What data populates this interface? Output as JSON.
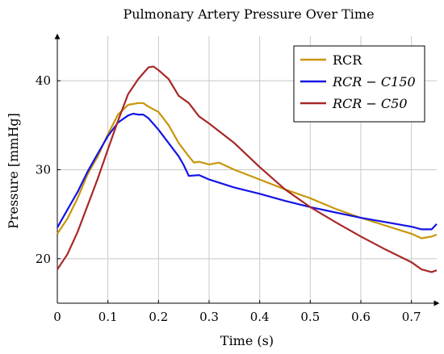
{
  "chart_data": {
    "type": "line",
    "title": "Pulmonary Artery Pressure Over Time",
    "xlabel": "Time (s)",
    "ylabel": "Pressure [mmHg]",
    "xlim": [
      0,
      0.75
    ],
    "ylim": [
      15,
      45
    ],
    "xticks": [
      0,
      0.1,
      0.2,
      0.3,
      0.4,
      0.5,
      0.6,
      0.7
    ],
    "yticks": [
      20,
      30,
      40
    ],
    "grid": true,
    "legend_position": "top-right",
    "series": [
      {
        "name": "RCR",
        "color": "#c8960a",
        "x": [
          0,
          0.02,
          0.04,
          0.06,
          0.08,
          0.1,
          0.12,
          0.14,
          0.16,
          0.17,
          0.18,
          0.2,
          0.22,
          0.24,
          0.26,
          0.27,
          0.28,
          0.3,
          0.32,
          0.35,
          0.4,
          0.45,
          0.5,
          0.55,
          0.6,
          0.65,
          0.7,
          0.72,
          0.74,
          0.75
        ],
        "y": [
          22.8,
          24.5,
          26.8,
          29.5,
          31.5,
          34,
          36.2,
          37.3,
          37.5,
          37.5,
          37.1,
          36.5,
          35,
          33,
          31.5,
          30.8,
          30.9,
          30.6,
          30.8,
          30,
          28.9,
          27.8,
          26.8,
          25.6,
          24.6,
          23.7,
          22.8,
          22.3,
          22.5,
          22.7
        ]
      },
      {
        "name": "RCR − C150",
        "color": "#1414e6",
        "x": [
          0,
          0.02,
          0.04,
          0.06,
          0.08,
          0.1,
          0.12,
          0.14,
          0.15,
          0.16,
          0.17,
          0.18,
          0.2,
          0.22,
          0.24,
          0.25,
          0.26,
          0.28,
          0.3,
          0.35,
          0.4,
          0.45,
          0.5,
          0.55,
          0.6,
          0.65,
          0.7,
          0.72,
          0.74,
          0.75
        ],
        "y": [
          23.5,
          25.5,
          27.5,
          29.8,
          31.8,
          33.8,
          35.3,
          36.1,
          36.3,
          36.2,
          36.2,
          35.8,
          34.5,
          33,
          31.5,
          30.5,
          29.3,
          29.4,
          28.9,
          28,
          27.3,
          26.5,
          25.8,
          25.2,
          24.6,
          24.1,
          23.6,
          23.3,
          23.3,
          23.9
        ]
      },
      {
        "name": "RCR − C50",
        "color": "#a82828",
        "x": [
          0,
          0.02,
          0.04,
          0.06,
          0.08,
          0.1,
          0.12,
          0.14,
          0.16,
          0.18,
          0.19,
          0.2,
          0.22,
          0.24,
          0.26,
          0.28,
          0.3,
          0.35,
          0.4,
          0.45,
          0.5,
          0.55,
          0.6,
          0.65,
          0.7,
          0.72,
          0.74,
          0.75
        ],
        "y": [
          18.8,
          20.5,
          23,
          26,
          29,
          32.3,
          35.5,
          38.5,
          40.2,
          41.5,
          41.6,
          41.2,
          40.2,
          38.3,
          37.5,
          36,
          35.2,
          33,
          30.3,
          27.8,
          25.8,
          24.1,
          22.5,
          21,
          19.6,
          18.8,
          18.5,
          18.7
        ]
      }
    ]
  }
}
